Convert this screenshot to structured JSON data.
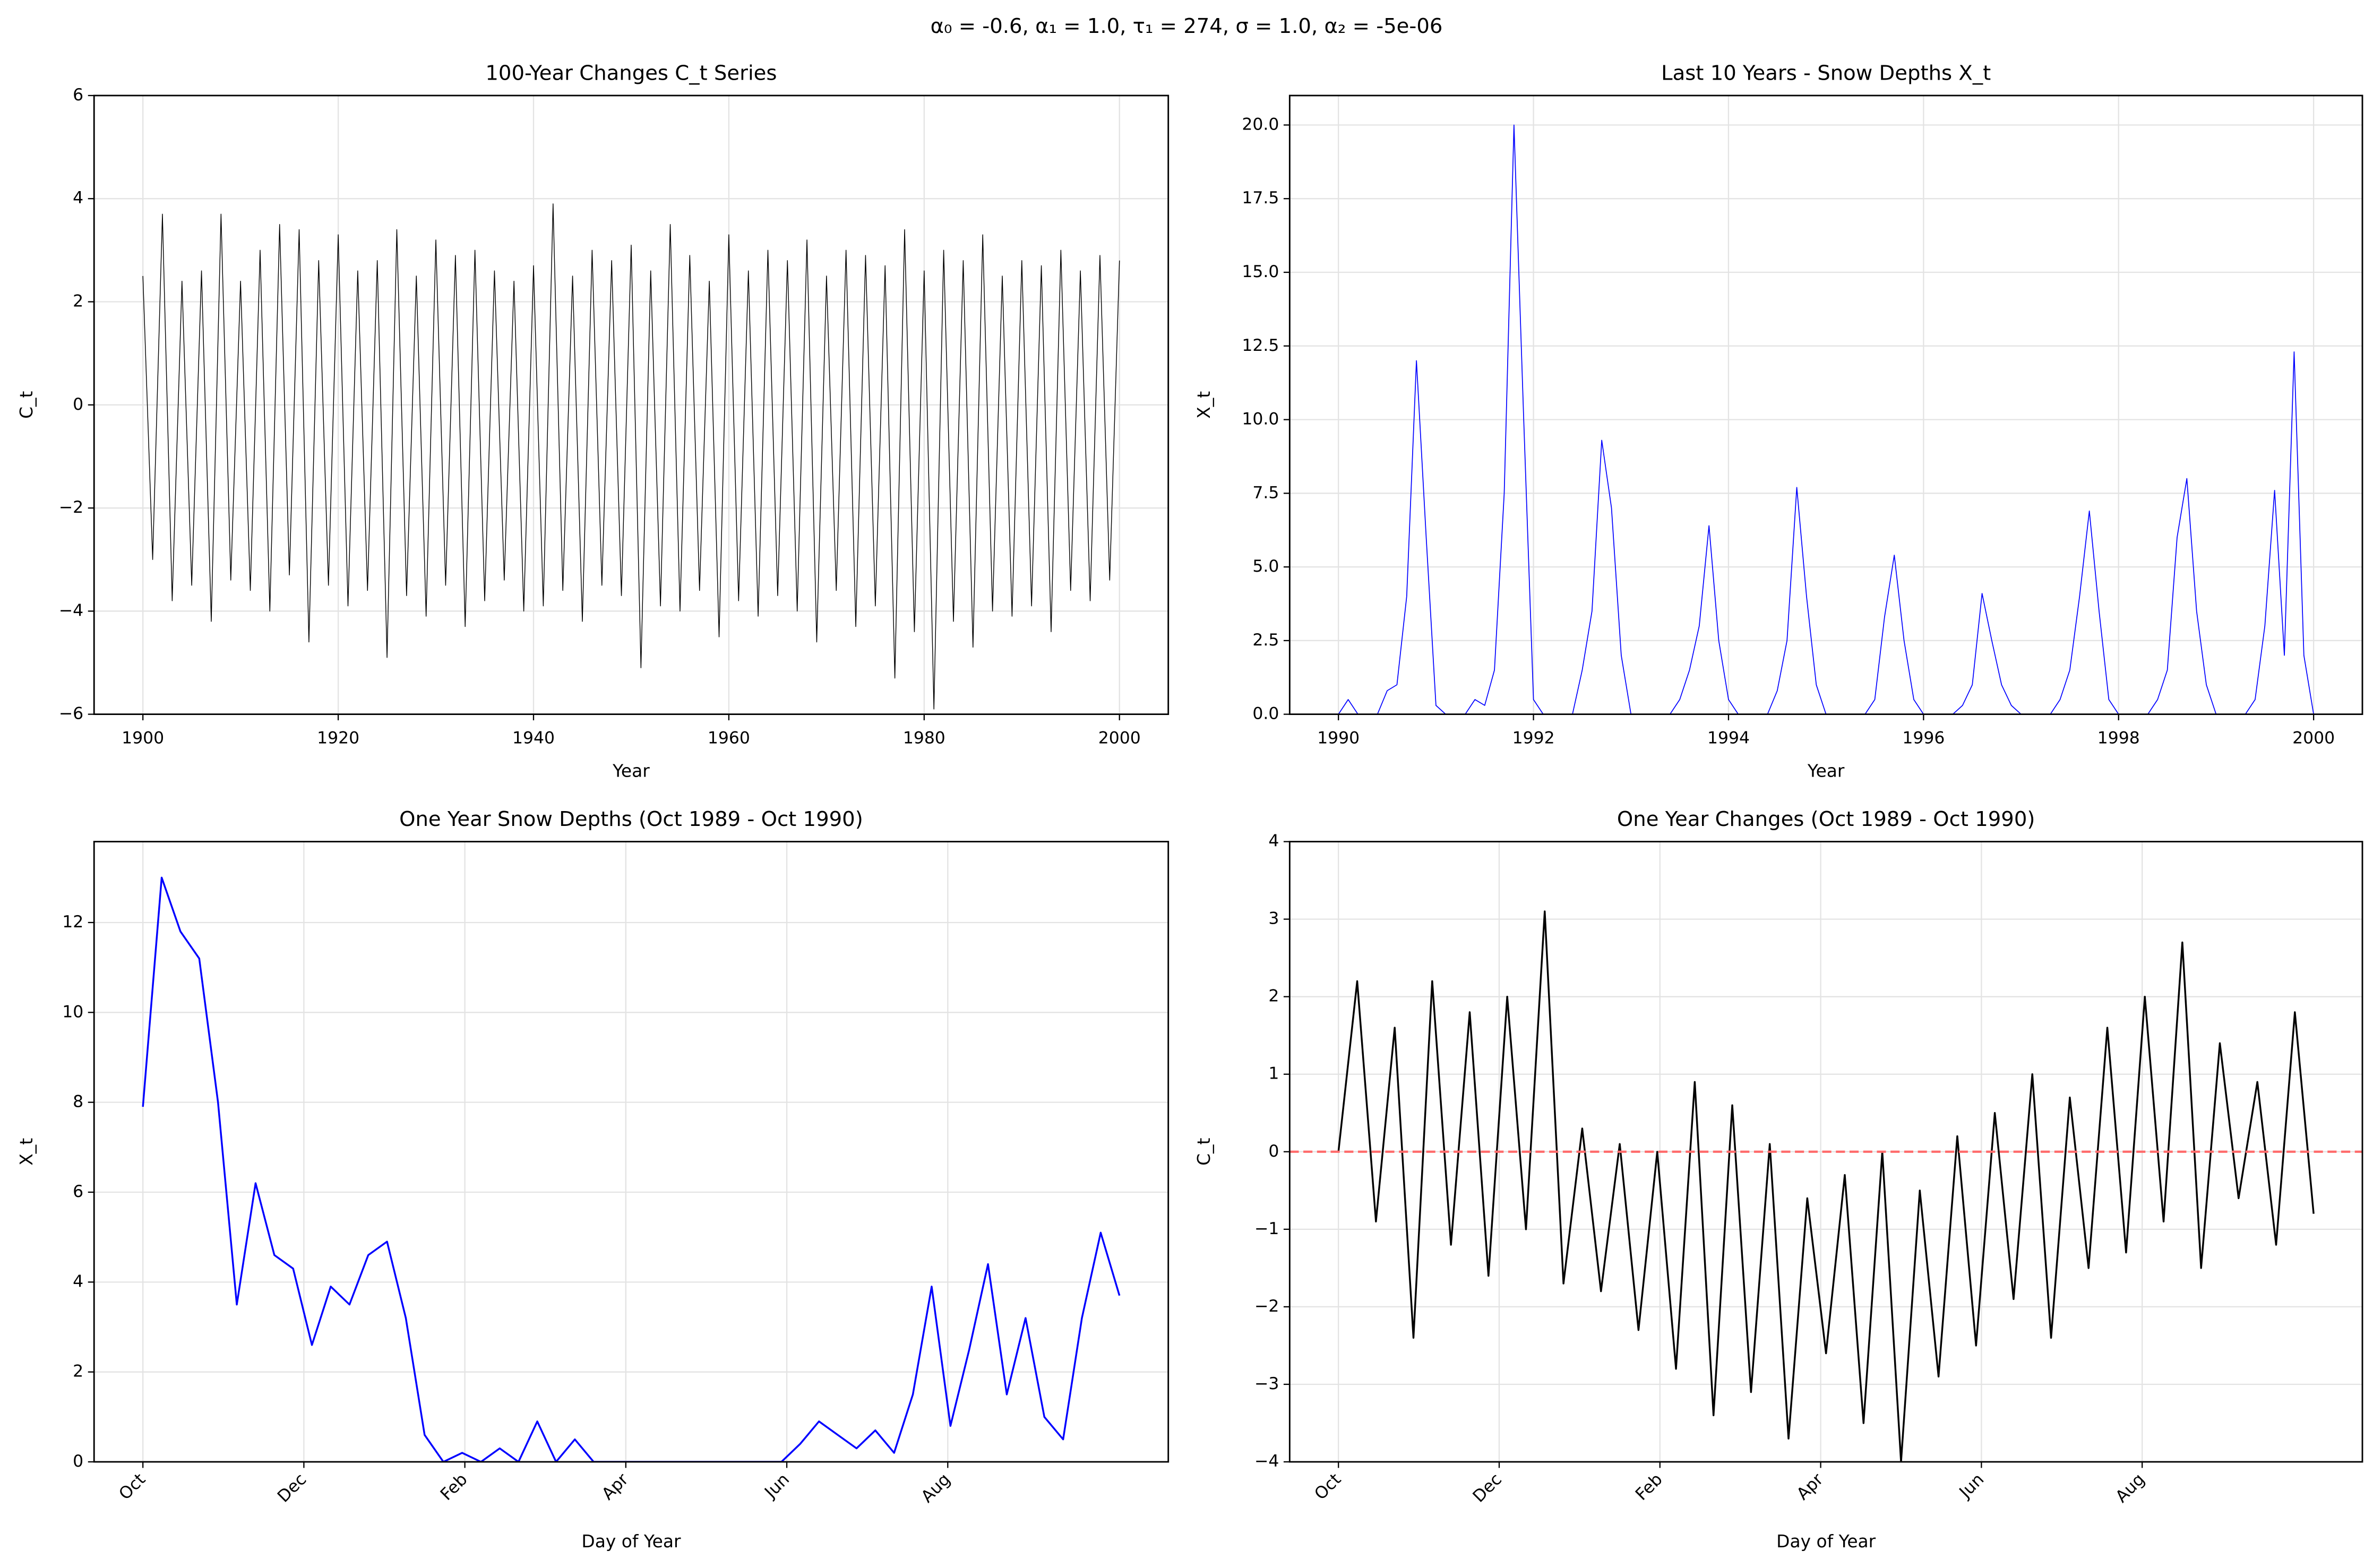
{
  "suptitle": "α₀ = -0.6, α₁ = 1.0, τ₁ = 274, σ = 1.0, α₂ = -5e-06",
  "chart_data": [
    {
      "type": "line",
      "title": "100-Year Changes C_t Series",
      "xlabel": "Year",
      "ylabel": "C_t",
      "color": "#000000",
      "line_width": 0.5,
      "grid": true,
      "xlim": [
        1895,
        2005
      ],
      "ylim": [
        -6,
        6
      ],
      "xticks": [
        1900,
        1920,
        1940,
        1960,
        1980,
        2000
      ],
      "yticks": [
        {
          "value": -6,
          "label": "−6"
        },
        {
          "value": -4,
          "label": "−4"
        },
        {
          "value": -2,
          "label": "−2"
        },
        0,
        2,
        4,
        6
      ],
      "x": [
        1900,
        1901,
        1902,
        1903,
        1904,
        1905,
        1906,
        1907,
        1908,
        1909,
        1910,
        1911,
        1912,
        1913,
        1914,
        1915,
        1916,
        1917,
        1918,
        1919,
        1920,
        1921,
        1922,
        1923,
        1924,
        1925,
        1926,
        1927,
        1928,
        1929,
        1930,
        1931,
        1932,
        1933,
        1934,
        1935,
        1936,
        1937,
        1938,
        1939,
        1940,
        1941,
        1942,
        1943,
        1944,
        1945,
        1946,
        1947,
        1948,
        1949,
        1950,
        1951,
        1952,
        1953,
        1954,
        1955,
        1956,
        1957,
        1958,
        1959,
        1960,
        1961,
        1962,
        1963,
        1964,
        1965,
        1966,
        1967,
        1968,
        1969,
        1970,
        1971,
        1972,
        1973,
        1974,
        1975,
        1976,
        1977,
        1978,
        1979,
        1980,
        1981,
        1982,
        1983,
        1984,
        1985,
        1986,
        1987,
        1988,
        1989,
        1990,
        1991,
        1992,
        1993,
        1994,
        1995,
        1996,
        1997,
        1998,
        1999,
        2000
      ],
      "values": [
        2.5,
        -3.0,
        3.7,
        -3.8,
        2.4,
        -3.5,
        2.6,
        -4.2,
        3.7,
        -3.4,
        2.4,
        -3.6,
        3.0,
        -4.0,
        3.5,
        -3.3,
        3.4,
        -4.6,
        2.8,
        -3.5,
        3.3,
        -3.9,
        2.6,
        -3.6,
        2.8,
        -4.9,
        3.4,
        -3.7,
        2.5,
        -4.1,
        3.2,
        -3.5,
        2.9,
        -4.3,
        3.0,
        -3.8,
        2.6,
        -3.4,
        2.4,
        -4.0,
        2.7,
        -3.9,
        3.9,
        -3.6,
        2.5,
        -4.2,
        3.0,
        -3.5,
        2.8,
        -3.7,
        3.1,
        -5.1,
        2.6,
        -3.9,
        3.5,
        -4.0,
        2.9,
        -3.6,
        2.4,
        -4.5,
        3.3,
        -3.8,
        2.6,
        -4.1,
        3.0,
        -3.7,
        2.8,
        -4.0,
        3.2,
        -4.6,
        2.5,
        -3.6,
        3.0,
        -4.3,
        2.9,
        -3.9,
        2.7,
        -5.3,
        3.4,
        -4.4,
        2.6,
        -5.9,
        3.0,
        -4.2,
        2.8,
        -4.7,
        3.3,
        -4.0,
        2.5,
        -4.1,
        2.8,
        -3.9,
        2.7,
        -4.4,
        3.0,
        -3.6,
        2.6,
        -3.8,
        2.9,
        -3.4,
        2.8
      ]
    },
    {
      "type": "line",
      "title": "Last 10 Years - Snow Depths X_t",
      "xlabel": "Year",
      "ylabel": "X_t",
      "color": "#0000ff",
      "line_width": 0.6,
      "grid": true,
      "xlim": [
        1989.5,
        2000.5
      ],
      "ylim": [
        0,
        21
      ],
      "xticks": [
        1990,
        1992,
        1994,
        1996,
        1998,
        2000
      ],
      "yticks": [
        {
          "value": 0,
          "label": "0.0"
        },
        2.5,
        {
          "value": 5,
          "label": "5.0"
        },
        7.5,
        {
          "value": 10,
          "label": "10.0"
        },
        12.5,
        {
          "value": 15,
          "label": "15.0"
        },
        17.5,
        {
          "value": 20,
          "label": "20.0"
        }
      ],
      "x": [
        1990.0,
        1990.1,
        1990.2,
        1990.3,
        1990.4,
        1990.5,
        1990.6,
        1990.7,
        1990.8,
        1990.9,
        1991.0,
        1991.1,
        1991.2,
        1991.3,
        1991.4,
        1991.5,
        1991.6,
        1991.7,
        1991.8,
        1991.9,
        1992.0,
        1992.1,
        1992.2,
        1992.3,
        1992.4,
        1992.5,
        1992.6,
        1992.7,
        1992.8,
        1992.9,
        1993.0,
        1993.1,
        1993.2,
        1993.3,
        1993.4,
        1993.5,
        1993.6,
        1993.7,
        1993.8,
        1993.9,
        1994.0,
        1994.1,
        1994.2,
        1994.3,
        1994.4,
        1994.5,
        1994.6,
        1994.7,
        1994.8,
        1994.9,
        1995.0,
        1995.1,
        1995.2,
        1995.3,
        1995.4,
        1995.5,
        1995.6,
        1995.7,
        1995.8,
        1995.9,
        1996.0,
        1996.1,
        1996.2,
        1996.3,
        1996.4,
        1996.5,
        1996.6,
        1996.7,
        1996.8,
        1996.9,
        1997.0,
        1997.1,
        1997.2,
        1997.3,
        1997.4,
        1997.5,
        1997.6,
        1997.7,
        1997.8,
        1997.9,
        1998.0,
        1998.1,
        1998.2,
        1998.3,
        1998.4,
        1998.5,
        1998.6,
        1998.7,
        1998.8,
        1998.9,
        1999.0,
        1999.1,
        1999.2,
        1999.3,
        1999.4,
        1999.5,
        1999.6,
        1999.7,
        1999.8,
        1999.9,
        2000.0
      ],
      "values": [
        0,
        0.5,
        0,
        0,
        0,
        0.8,
        1,
        4,
        12,
        6,
        0.3,
        0,
        0,
        0,
        0.5,
        0.3,
        1.5,
        7.5,
        20,
        10,
        0.5,
        0,
        0,
        0,
        0,
        1.5,
        3.5,
        9.3,
        7,
        2,
        0,
        0,
        0,
        0,
        0,
        0.5,
        1.5,
        3,
        6.4,
        2.5,
        0.5,
        0,
        0,
        0,
        0,
        0.8,
        2.5,
        7.7,
        4,
        1,
        0,
        0,
        0,
        0,
        0,
        0.5,
        3.3,
        5.4,
        2.5,
        0.5,
        0,
        0,
        0,
        0,
        0.3,
        1,
        4.1,
        2.5,
        1,
        0.3,
        0,
        0,
        0,
        0,
        0.5,
        1.5,
        4,
        6.9,
        3.5,
        0.5,
        0,
        0,
        0,
        0,
        0.5,
        1.5,
        6,
        8,
        3.5,
        1,
        0,
        0,
        0,
        0,
        0.5,
        3,
        7.6,
        2,
        12.3,
        2,
        0
      ]
    },
    {
      "type": "line",
      "title": "One Year Snow Depths (Oct 1989 - Oct 1990)",
      "xlabel": "Day of Year",
      "ylabel": "X_t",
      "color": "#0000ff",
      "line_width": 1.2,
      "grid": true,
      "xtick_rotation": 45,
      "xlim": [
        -18.2,
        382.2
      ],
      "ylim": [
        0,
        13.8
      ],
      "xticks": [
        {
          "value": 0,
          "label": "Oct"
        },
        {
          "value": 60,
          "label": "Dec"
        },
        {
          "value": 120,
          "label": "Feb"
        },
        {
          "value": 180,
          "label": "Apr"
        },
        {
          "value": 240,
          "label": "Jun"
        },
        {
          "value": 300,
          "label": "Aug"
        }
      ],
      "yticks": [
        0,
        2,
        4,
        6,
        8,
        10,
        12
      ],
      "x": [
        0,
        7,
        14,
        21,
        28,
        35,
        42,
        49,
        56,
        63,
        70,
        77,
        84,
        91,
        98,
        105,
        112,
        119,
        126,
        133,
        140,
        147,
        154,
        161,
        168,
        175,
        182,
        189,
        196,
        203,
        210,
        217,
        224,
        231,
        238,
        245,
        252,
        259,
        266,
        273,
        280,
        287,
        294,
        301,
        308,
        315,
        322,
        329,
        336,
        343,
        350,
        357,
        364
      ],
      "values": [
        7.9,
        13.0,
        11.8,
        11.2,
        8.0,
        3.5,
        6.2,
        4.6,
        4.3,
        2.6,
        3.9,
        3.5,
        4.6,
        4.9,
        3.2,
        0.6,
        0,
        0.2,
        0,
        0.3,
        0,
        0.9,
        0,
        0.5,
        0,
        0,
        0,
        0,
        0,
        0,
        0,
        0,
        0,
        0,
        0,
        0.4,
        0.9,
        0.6,
        0.3,
        0.7,
        0.2,
        1.5,
        3.9,
        0.8,
        2.5,
        4.4,
        1.5,
        3.2,
        1.0,
        0.5,
        3.2,
        5.1,
        3.7
      ]
    },
    {
      "type": "line",
      "title": "One Year Changes (Oct 1989 - Oct 1990)",
      "xlabel": "Day of Year",
      "ylabel": "C_t",
      "color": "#000000",
      "line_width": 1.2,
      "grid": true,
      "xtick_rotation": 45,
      "hline": {
        "value": 0,
        "color": "#ff6b6b",
        "style": "dashed"
      },
      "xlim": [
        -18.2,
        382.2
      ],
      "ylim": [
        -4,
        4
      ],
      "xticks": [
        {
          "value": 0,
          "label": "Oct"
        },
        {
          "value": 60,
          "label": "Dec"
        },
        {
          "value": 120,
          "label": "Feb"
        },
        {
          "value": 180,
          "label": "Apr"
        },
        {
          "value": 240,
          "label": "Jun"
        },
        {
          "value": 300,
          "label": "Aug"
        }
      ],
      "yticks": [
        {
          "value": -4,
          "label": "−4"
        },
        {
          "value": -3,
          "label": "−3"
        },
        {
          "value": -2,
          "label": "−2"
        },
        {
          "value": -1,
          "label": "−1"
        },
        0,
        1,
        2,
        3,
        4
      ],
      "x": [
        0,
        7,
        14,
        21,
        28,
        35,
        42,
        49,
        56,
        63,
        70,
        77,
        84,
        91,
        98,
        105,
        112,
        119,
        126,
        133,
        140,
        147,
        154,
        161,
        168,
        175,
        182,
        189,
        196,
        203,
        210,
        217,
        224,
        231,
        238,
        245,
        252,
        259,
        266,
        273,
        280,
        287,
        294,
        301,
        308,
        315,
        322,
        329,
        336,
        343,
        350,
        357,
        364
      ],
      "values": [
        0,
        2.2,
        -0.9,
        1.6,
        -2.4,
        2.2,
        -1.2,
        1.8,
        -1.6,
        2.0,
        -1.0,
        3.1,
        -1.7,
        0.3,
        -1.8,
        0.1,
        -2.3,
        0.0,
        -2.8,
        0.9,
        -3.4,
        0.6,
        -3.1,
        0.1,
        -3.7,
        -0.6,
        -2.6,
        -0.3,
        -3.5,
        0.0,
        -4.0,
        -0.5,
        -2.9,
        0.2,
        -2.5,
        0.5,
        -1.9,
        1.0,
        -2.4,
        0.7,
        -1.5,
        1.6,
        -1.3,
        2.0,
        -0.9,
        2.7,
        -1.5,
        1.4,
        -0.6,
        0.9,
        -1.2,
        1.8,
        -0.8
      ]
    }
  ]
}
